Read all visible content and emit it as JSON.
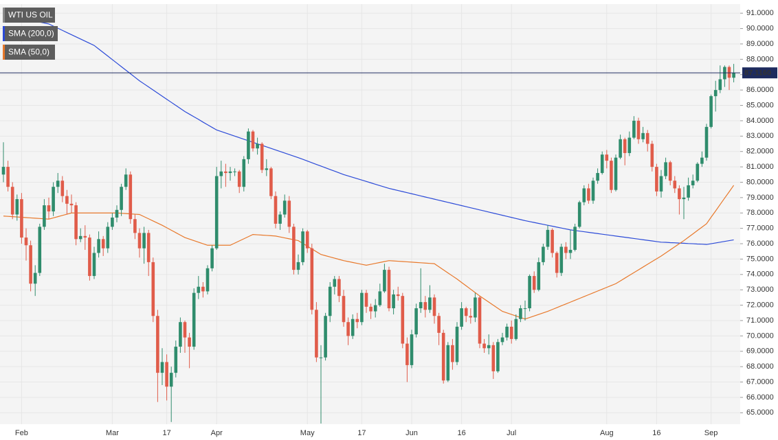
{
  "chart_data": {
    "type": "candlestick",
    "title": "WTI US OIL",
    "categories": [
      null,
      null,
      null,
      null,
      "Feb",
      null,
      null,
      null,
      null,
      null,
      null,
      null,
      null,
      null,
      null,
      null,
      null,
      null,
      null,
      null,
      null,
      null,
      null,
      null,
      "Mar",
      null,
      null,
      null,
      null,
      null,
      null,
      null,
      null,
      null,
      null,
      null,
      "17",
      null,
      null,
      null,
      null,
      null,
      null,
      null,
      null,
      null,
      null,
      "Apr",
      null,
      null,
      null,
      null,
      null,
      null,
      null,
      null,
      null,
      null,
      null,
      null,
      null,
      null,
      null,
      null,
      null,
      null,
      null,
      "May",
      null,
      null,
      null,
      null,
      null,
      null,
      null,
      null,
      null,
      null,
      null,
      "17",
      null,
      null,
      null,
      null,
      null,
      null,
      null,
      null,
      null,
      null,
      "Jun",
      null,
      null,
      null,
      null,
      null,
      null,
      null,
      null,
      null,
      null,
      "16",
      null,
      null,
      null,
      null,
      null,
      null,
      null,
      null,
      null,
      null,
      "Jul",
      null,
      null,
      null,
      null,
      null,
      null,
      null,
      null,
      null,
      null,
      null,
      null,
      null,
      null,
      null,
      null,
      null,
      null,
      null,
      null,
      "Aug",
      null,
      null,
      null,
      null,
      null,
      null,
      null,
      null,
      null,
      null,
      "16",
      null,
      null,
      null,
      null,
      null,
      null,
      null,
      null,
      null,
      null,
      null,
      "Sep",
      null,
      null,
      null,
      null,
      null
    ],
    "open": [
      80.5,
      81.0,
      79.7,
      77.9,
      78.9,
      76.4,
      75.9,
      73.4,
      74.1,
      77.1,
      78.5,
      78.1,
      79.7,
      80.1,
      79.1,
      78.6,
      78.5,
      76.3,
      76.5,
      76.4,
      73.9,
      75.4,
      76.3,
      75.7,
      77.1,
      77.7,
      78.2,
      79.7,
      80.5,
      77.6,
      76.7,
      75.7,
      76.7,
      74.8,
      71.3,
      67.6,
      68.3,
      66.7,
      67.6,
      69.3,
      70.9,
      69.9,
      69.3,
      72.8,
      73.2,
      72.9,
      74.4,
      75.7,
      80.4,
      80.7,
      80.6,
      80.7,
      80.7,
      79.7,
      81.5,
      83.3,
      82.2,
      82.5,
      80.8,
      80.9,
      79.1,
      77.3,
      77.9,
      78.8,
      77.1,
      74.3,
      74.8,
      76.8,
      75.7,
      71.7,
      68.6,
      68.6,
      71.3,
      73.2,
      73.7,
      72.6,
      70.9,
      70.0,
      71.1,
      70.9,
      72.8,
      71.9,
      71.6,
      72.0,
      72.9,
      74.3,
      71.8,
      72.7,
      72.6,
      69.5,
      68.1,
      70.1,
      71.8,
      72.2,
      71.7,
      72.5,
      71.3,
      70.2,
      67.1,
      69.4,
      68.3,
      70.6,
      71.8,
      71.3,
      71.2,
      72.5,
      69.5,
      69.2,
      69.4,
      67.7,
      69.6,
      69.9,
      70.6,
      69.8,
      71.1,
      71.8,
      71.8,
      73.9,
      73.0,
      74.8,
      75.8,
      76.9,
      75.4,
      74.1,
      75.8,
      75.4,
      75.6,
      77.1,
      78.7,
      79.6,
      78.8,
      80.1,
      80.6,
      81.8,
      81.4,
      79.5,
      81.6,
      82.8,
      81.9,
      82.9,
      84.0,
      82.8,
      83.2,
      82.5,
      81.0,
      79.4,
      80.4,
      81.3,
      80.1,
      79.6,
      78.9,
      79.0,
      79.8,
      80.1,
      81.2,
      81.6,
      83.6,
      85.6,
      86.0,
      86.7,
      87.5,
      86.8
    ],
    "high": [
      82.6,
      81.4,
      80.0,
      79.2,
      79.3,
      77.0,
      76.2,
      74.6,
      77.3,
      78.9,
      79.0,
      80.0,
      80.6,
      80.4,
      79.5,
      79.2,
      78.7,
      77.0,
      77.2,
      76.6,
      75.8,
      76.8,
      76.5,
      77.4,
      78.0,
      78.5,
      79.9,
      80.9,
      80.7,
      77.9,
      77.0,
      77.1,
      76.9,
      75.1,
      71.7,
      69.2,
      68.8,
      68.0,
      69.7,
      71.2,
      71.0,
      70.2,
      73.1,
      73.9,
      73.5,
      74.6,
      75.9,
      81.0,
      81.4,
      81.2,
      81.0,
      80.9,
      80.8,
      81.7,
      83.5,
      83.4,
      82.9,
      82.6,
      81.5,
      81.0,
      79.4,
      78.1,
      79.2,
      79.1,
      77.3,
      75.3,
      77.0,
      76.9,
      76.0,
      72.2,
      69.4,
      71.5,
      73.5,
      73.9,
      73.9,
      73.0,
      71.2,
      71.4,
      71.5,
      73.0,
      73.0,
      72.1,
      72.4,
      73.4,
      74.7,
      74.5,
      73.0,
      73.2,
      72.8,
      69.9,
      70.4,
      72.1,
      74.4,
      72.6,
      73.3,
      72.7,
      71.5,
      70.4,
      69.6,
      69.8,
      70.9,
      72.2,
      71.9,
      71.8,
      72.8,
      72.6,
      69.8,
      70.1,
      69.6,
      69.8,
      70.2,
      70.8,
      71.0,
      71.4,
      72.0,
      72.3,
      74.0,
      74.2,
      75.1,
      76.0,
      77.2,
      77.0,
      75.5,
      76.0,
      76.1,
      76.9,
      77.3,
      78.8,
      79.8,
      79.9,
      80.3,
      80.9,
      82.0,
      82.1,
      81.6,
      81.8,
      83.1,
      82.9,
      83.3,
      84.3,
      84.2,
      83.6,
      83.4,
      82.7,
      81.2,
      80.8,
      81.6,
      81.4,
      80.4,
      79.8,
      79.7,
      80.3,
      80.5,
      81.3,
      82.0,
      83.8,
      85.7,
      86.6,
      87.6,
      87.6,
      87.6,
      87.7
    ],
    "low": [
      80.0,
      79.4,
      77.6,
      77.5,
      76.0,
      74.9,
      72.9,
      72.6,
      73.9,
      76.9,
      77.6,
      77.8,
      79.3,
      78.7,
      77.9,
      78.0,
      75.9,
      76.1,
      75.6,
      73.6,
      73.7,
      75.1,
      75.2,
      75.4,
      76.9,
      77.4,
      77.8,
      79.5,
      77.3,
      76.3,
      75.1,
      74.7,
      73.9,
      70.9,
      65.7,
      66.8,
      65.8,
      64.4,
      67.3,
      68.9,
      68.9,
      67.9,
      69.1,
      72.4,
      72.5,
      72.7,
      74.2,
      75.6,
      79.6,
      79.7,
      80.1,
      80.4,
      79.3,
      79.4,
      81.2,
      82.0,
      81.8,
      80.6,
      80.4,
      78.9,
      77.0,
      76.9,
      77.7,
      76.7,
      74.0,
      74.0,
      74.6,
      75.4,
      71.4,
      68.3,
      64.3,
      68.4,
      70.9,
      72.7,
      72.2,
      70.6,
      69.4,
      69.8,
      70.5,
      70.7,
      71.5,
      71.1,
      71.2,
      71.9,
      72.8,
      71.6,
      71.4,
      72.3,
      69.2,
      67.0,
      67.9,
      69.9,
      71.5,
      71.2,
      71.5,
      70.8,
      69.4,
      66.9,
      67.0,
      67.8,
      68.1,
      70.4,
      70.9,
      70.8,
      70.9,
      69.2,
      68.9,
      68.8,
      67.2,
      67.6,
      69.4,
      69.7,
      69.5,
      69.7,
      70.9,
      71.0,
      71.6,
      72.8,
      72.9,
      74.6,
      75.6,
      75.1,
      73.8,
      73.9,
      75.0,
      75.0,
      75.5,
      77.0,
      78.5,
      78.6,
      78.6,
      79.9,
      80.5,
      80.9,
      79.3,
      79.4,
      81.5,
      81.1,
      81.7,
      82.8,
      82.5,
      82.6,
      82.0,
      80.7,
      79.1,
      79.0,
      80.2,
      79.8,
      79.3,
      77.9,
      77.6,
      78.8,
      79.6,
      80.0,
      81.0,
      81.4,
      83.5,
      84.6,
      85.8,
      86.2,
      86.0,
      86.5
    ],
    "close": [
      81.0,
      79.7,
      77.9,
      78.9,
      76.4,
      75.9,
      73.4,
      74.1,
      77.1,
      78.5,
      78.1,
      79.7,
      80.1,
      79.1,
      78.6,
      78.5,
      76.3,
      76.5,
      76.4,
      73.9,
      75.4,
      76.3,
      75.7,
      77.1,
      77.7,
      78.2,
      79.7,
      80.5,
      77.6,
      76.7,
      75.7,
      76.7,
      74.8,
      71.3,
      67.6,
      68.3,
      66.7,
      67.6,
      69.3,
      70.9,
      69.9,
      69.3,
      72.8,
      73.2,
      72.9,
      74.4,
      75.7,
      80.4,
      80.7,
      80.6,
      80.7,
      80.7,
      79.7,
      81.5,
      83.3,
      82.2,
      82.5,
      80.8,
      80.9,
      79.1,
      77.3,
      77.9,
      78.8,
      77.1,
      74.3,
      74.8,
      76.8,
      75.7,
      71.7,
      68.6,
      68.6,
      71.3,
      73.2,
      73.7,
      72.6,
      70.9,
      70.0,
      71.1,
      70.9,
      72.8,
      71.9,
      71.6,
      72.0,
      72.9,
      74.3,
      71.8,
      72.7,
      72.6,
      69.5,
      68.1,
      70.1,
      71.8,
      72.2,
      71.7,
      72.5,
      71.3,
      70.2,
      67.1,
      69.4,
      68.3,
      70.6,
      71.8,
      71.3,
      71.2,
      72.5,
      69.5,
      69.2,
      69.4,
      67.7,
      69.6,
      69.9,
      70.6,
      69.8,
      71.1,
      71.8,
      71.8,
      73.9,
      73.0,
      74.8,
      75.8,
      76.9,
      75.4,
      74.1,
      75.8,
      75.4,
      75.6,
      77.1,
      78.7,
      79.6,
      78.8,
      80.1,
      80.6,
      81.8,
      81.4,
      79.5,
      81.6,
      82.8,
      81.9,
      82.9,
      84.0,
      82.8,
      83.2,
      82.5,
      81.0,
      79.4,
      80.4,
      81.3,
      80.1,
      79.6,
      78.9,
      79.0,
      79.8,
      80.1,
      81.2,
      81.6,
      83.6,
      85.6,
      86.0,
      86.7,
      87.5,
      86.8,
      87.116
    ],
    "up_color": "#2f8c6c",
    "down_color": "#e05c4a",
    "overlays": [
      {
        "name": "SMA (200,0)",
        "color": "#2b4ad8",
        "values": [
          90.9,
          90.84,
          90.78,
          90.72,
          90.66,
          90.6,
          90.54,
          90.48,
          90.42,
          90.36,
          90.3,
          90.16,
          90.02,
          89.88,
          89.74,
          89.6,
          89.46,
          89.32,
          89.18,
          89.04,
          88.9,
          88.67,
          88.44,
          88.21,
          87.98,
          87.75,
          87.52,
          87.29,
          87.06,
          86.83,
          86.6,
          86.4,
          86.2,
          86.0,
          85.8,
          85.6,
          85.4,
          85.2,
          85.0,
          84.8,
          84.6,
          84.43,
          84.26,
          84.09,
          83.91,
          83.74,
          83.57,
          83.4,
          83.3,
          83.2,
          83.1,
          83.0,
          82.9,
          82.8,
          82.7,
          82.6,
          82.5,
          82.4,
          82.3,
          82.2,
          82.1,
          82.0,
          81.9,
          81.8,
          81.7,
          81.6,
          81.49,
          81.38,
          81.27,
          81.16,
          81.05,
          80.94,
          80.83,
          80.72,
          80.61,
          80.5,
          80.41,
          80.32,
          80.23,
          80.14,
          80.05,
          79.96,
          79.87,
          79.78,
          79.69,
          79.6,
          79.53,
          79.46,
          79.39,
          79.32,
          79.25,
          79.18,
          79.11,
          79.04,
          78.97,
          78.9,
          78.83,
          78.76,
          78.69,
          78.62,
          78.55,
          78.48,
          78.41,
          78.34,
          78.27,
          78.2,
          78.13,
          78.06,
          77.99,
          77.92,
          77.85,
          77.78,
          77.71,
          77.64,
          77.57,
          77.5,
          77.44,
          77.38,
          77.32,
          77.26,
          77.2,
          77.14,
          77.08,
          77.02,
          76.96,
          76.9,
          76.86,
          76.82,
          76.78,
          76.74,
          76.7,
          76.66,
          76.62,
          76.58,
          76.54,
          76.5,
          76.46,
          76.42,
          76.38,
          76.34,
          76.3,
          76.26,
          76.22,
          76.18,
          76.14,
          76.1,
          76.09,
          76.07,
          76.06,
          76.04,
          76.03,
          76.01,
          76.0,
          75.98,
          75.97,
          75.95,
          76.0,
          76.05,
          76.1,
          76.15,
          76.2,
          76.25
        ]
      },
      {
        "name": "SMA (50,0)",
        "color": "#e8782a",
        "values": [
          77.8,
          77.78,
          77.76,
          77.74,
          77.72,
          77.7,
          77.68,
          77.66,
          77.64,
          77.62,
          77.6,
          77.68,
          77.76,
          77.84,
          77.92,
          78.0,
          78.0,
          78.0,
          78.0,
          78.0,
          78.0,
          78.0,
          78.0,
          78.0,
          78.0,
          78.0,
          77.98,
          77.96,
          77.94,
          77.92,
          77.9,
          77.76,
          77.62,
          77.48,
          77.34,
          77.2,
          77.04,
          76.88,
          76.72,
          76.56,
          76.4,
          76.3,
          76.2,
          76.1,
          76.0,
          75.9,
          75.9,
          75.9,
          75.9,
          75.9,
          75.9,
          76.04,
          76.18,
          76.32,
          76.46,
          76.6,
          76.58,
          76.56,
          76.54,
          76.52,
          76.5,
          76.44,
          76.38,
          76.32,
          76.26,
          76.2,
          76.02,
          75.84,
          75.66,
          75.48,
          75.3,
          75.22,
          75.14,
          75.06,
          74.98,
          74.9,
          74.84,
          74.78,
          74.72,
          74.66,
          74.6,
          74.66,
          74.72,
          74.78,
          74.84,
          74.9,
          74.88,
          74.86,
          74.84,
          74.82,
          74.8,
          74.78,
          74.76,
          74.74,
          74.72,
          74.7,
          74.5,
          74.3,
          74.1,
          73.9,
          73.7,
          73.48,
          73.26,
          73.04,
          72.82,
          72.6,
          72.4,
          72.2,
          72.0,
          71.8,
          71.6,
          71.5,
          71.4,
          71.3,
          71.2,
          71.1,
          71.2,
          71.3,
          71.4,
          71.5,
          71.6,
          71.72,
          71.84,
          71.96,
          72.08,
          72.2,
          72.32,
          72.44,
          72.56,
          72.68,
          72.8,
          72.92,
          73.04,
          73.16,
          73.28,
          73.4,
          73.58,
          73.76,
          73.94,
          74.12,
          74.3,
          74.48,
          74.66,
          74.84,
          75.02,
          75.2,
          75.4,
          75.6,
          75.8,
          76.0,
          76.2,
          76.42,
          76.64,
          76.86,
          77.08,
          77.3,
          77.72,
          78.13,
          78.55,
          78.97,
          79.38,
          79.8
        ]
      }
    ],
    "ylim": [
      64.3,
      91.5
    ],
    "yticks": [
      {
        "value": 65,
        "label": "65.0000"
      },
      {
        "value": 66,
        "label": "66.0000"
      },
      {
        "value": 67,
        "label": "67.0000"
      },
      {
        "value": 68,
        "label": "68.0000"
      },
      {
        "value": 69,
        "label": "69.0000"
      },
      {
        "value": 70,
        "label": "70.0000"
      },
      {
        "value": 71,
        "label": "71.0000"
      },
      {
        "value": 72,
        "label": "72.0000"
      },
      {
        "value": 73,
        "label": "73.0000"
      },
      {
        "value": 74,
        "label": "74.0000"
      },
      {
        "value": 75,
        "label": "75.0000"
      },
      {
        "value": 76,
        "label": "76.0000"
      },
      {
        "value": 77,
        "label": "77.0000"
      },
      {
        "value": 78,
        "label": "78.0000"
      },
      {
        "value": 79,
        "label": "79.0000"
      },
      {
        "value": 80,
        "label": "80.0000"
      },
      {
        "value": 81,
        "label": "81.0000"
      },
      {
        "value": 82,
        "label": "82.0000"
      },
      {
        "value": 83,
        "label": "83.0000"
      },
      {
        "value": 84,
        "label": "84.0000"
      },
      {
        "value": 85,
        "label": "85.0000"
      },
      {
        "value": 86,
        "label": "86.0000"
      },
      {
        "value": 87,
        "label": "87.0000"
      },
      {
        "value": 88,
        "label": "88.0000"
      },
      {
        "value": 89,
        "label": "89.0000"
      },
      {
        "value": 90,
        "label": "90.0000"
      },
      {
        "value": 91,
        "label": "91.0000"
      }
    ],
    "grid": true,
    "last_price": {
      "value": 87.116,
      "label": "87.1160",
      "color": "#1e2b5e"
    }
  }
}
